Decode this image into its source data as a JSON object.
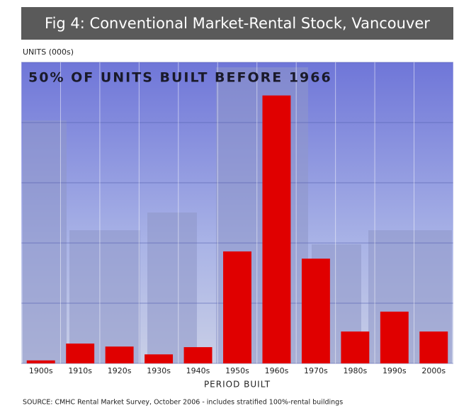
{
  "chart_data": {
    "type": "bar",
    "title": "Fig 4:  Conventional Market-Rental Stock, Vancouver",
    "y_label": "UNITS (000s)",
    "annotation": "50% OF UNITS BUILT BEFORE 1966",
    "x_label": "PERIOD BUILT",
    "source": "SOURCE: CMHC Rental Market Survey, October 2006 - includes stratified 100%-rental buildings",
    "categories": [
      "1900s",
      "1910s",
      "1920s",
      "1930s",
      "1940s",
      "1950s",
      "1960s",
      "1970s",
      "1980s",
      "1990s",
      "2000s"
    ],
    "values": [
      0.05,
      0.33,
      0.28,
      0.15,
      0.27,
      1.86,
      4.45,
      1.74,
      0.53,
      0.86,
      0.53
    ],
    "color": "#e00000",
    "ylim": [
      0,
      5
    ],
    "yticks": [
      0,
      1,
      2,
      3,
      4,
      5
    ],
    "grid": true
  }
}
